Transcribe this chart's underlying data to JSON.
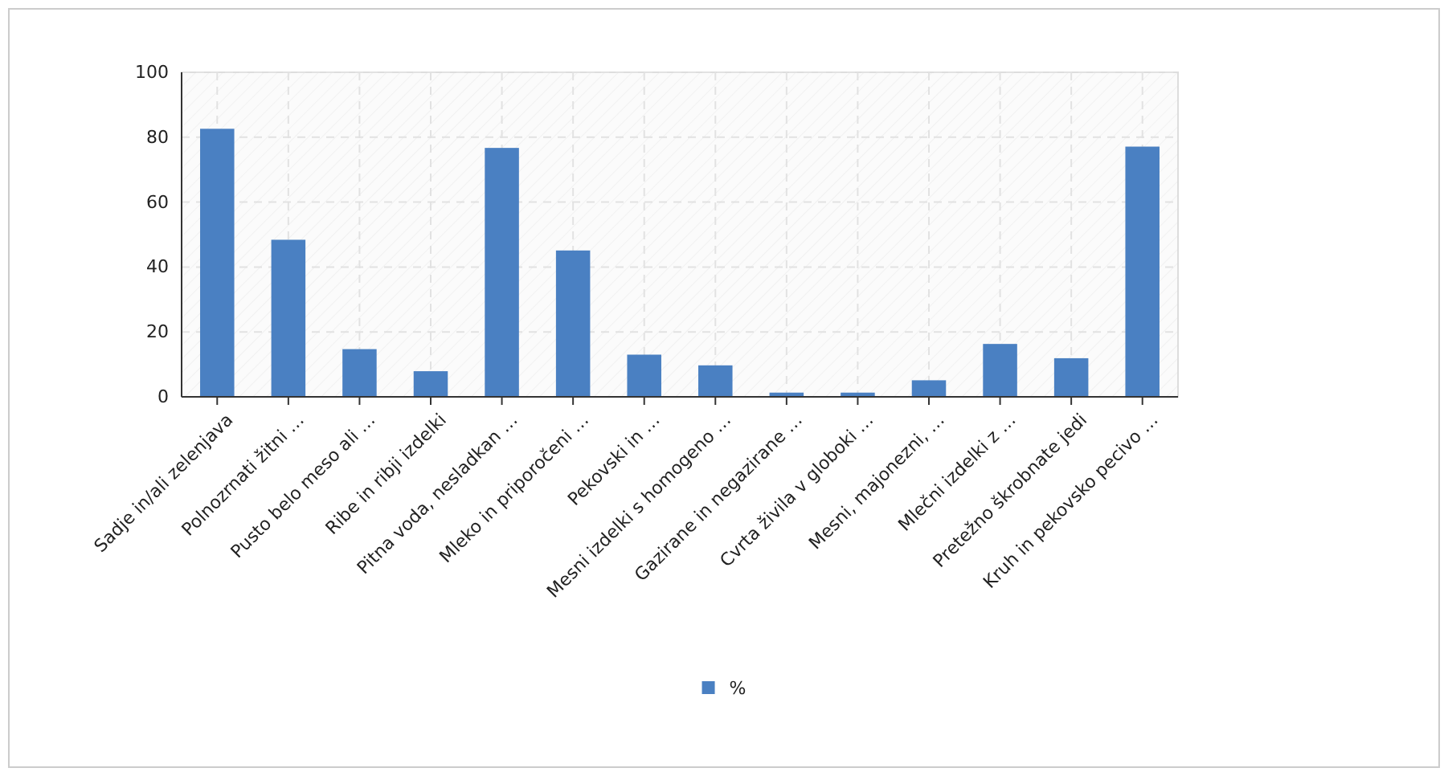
{
  "chart_data": {
    "type": "bar",
    "categories": [
      "Sadje in/ali zelenjava",
      "Polnozrnati žitni …",
      "Pusto belo meso ali …",
      "Ribe in ribji izdelki",
      "Pitna voda, nesladkan …",
      "Mleko in priporočeni …",
      "Pekovski in …",
      "Mesni izdelki s homogeno …",
      "Gazirane in negazirane …",
      "Cvrta živila v globoki …",
      "Mesni, majonezni, …",
      "Mlečni izdelki z …",
      "Pretežno škrobnate jedi",
      "Kruh in pekovsko pecivo …"
    ],
    "series": [
      {
        "name": "%",
        "color": "#4a80c2",
        "values": [
          82.6,
          48.4,
          14.7,
          7.9,
          76.7,
          45.1,
          13.0,
          9.7,
          1.3,
          1.3,
          5.1,
          16.3,
          11.9,
          77.1
        ]
      }
    ],
    "ylim": [
      0,
      100
    ],
    "yticks": [
      0,
      20,
      40,
      60,
      80,
      100
    ],
    "grid": true,
    "legend": "bottom"
  }
}
